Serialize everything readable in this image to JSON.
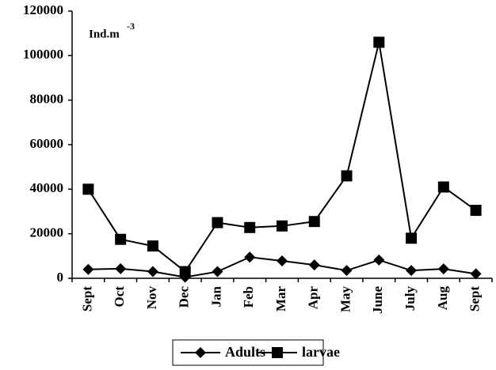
{
  "chart_data": {
    "type": "line",
    "unit_label": {
      "base": "Ind.m",
      "exponent": "-3"
    },
    "categories": [
      "Sept",
      "Oct",
      "Nov",
      "Dec",
      "Jan",
      "Feb",
      "Mar",
      "Apr",
      "May",
      "June",
      "July",
      "Aug",
      "Sept"
    ],
    "series": [
      {
        "name": "Adults",
        "color": "#000000",
        "marker": "diamond",
        "values": [
          4000,
          4300,
          3000,
          500,
          3000,
          9500,
          7800,
          6000,
          3500,
          8200,
          3500,
          4200,
          2000
        ]
      },
      {
        "name": "larvae",
        "color": "#000000",
        "marker": "square",
        "values": [
          40000,
          17500,
          14500,
          3000,
          25000,
          22800,
          23500,
          25500,
          46000,
          106000,
          18000,
          41000,
          30500
        ]
      }
    ],
    "ylim": [
      0,
      120000
    ],
    "yticks": [
      0,
      20000,
      40000,
      60000,
      80000,
      100000,
      120000
    ],
    "grid": false,
    "legend": "bottom"
  }
}
